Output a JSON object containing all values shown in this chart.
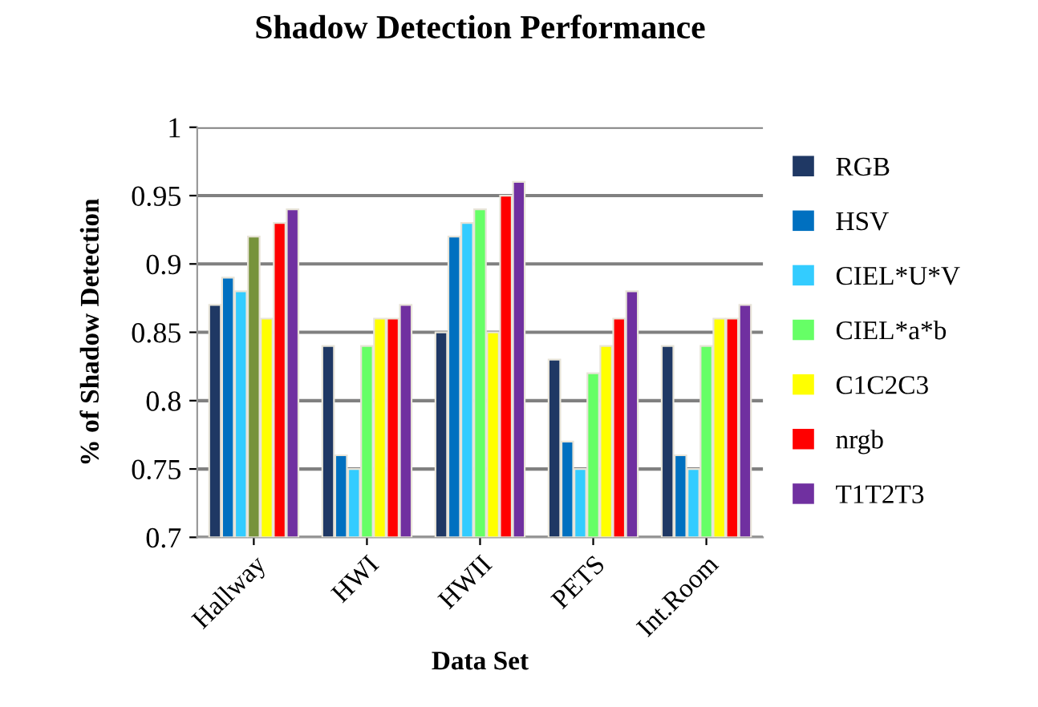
{
  "chart_data": {
    "type": "bar",
    "title": "Shadow Detection Performance",
    "xlabel": "Data Set",
    "ylabel": "% of Shadow Detection",
    "categories": [
      "Hallway",
      "HWI",
      "HWII",
      "PETS",
      "Int.Room"
    ],
    "series": [
      {
        "name": "RGB",
        "color": "#1f3864",
        "values": [
          0.87,
          0.84,
          0.85,
          0.83,
          0.84
        ]
      },
      {
        "name": "HSV",
        "color": "#0070c0",
        "values": [
          0.89,
          0.76,
          0.92,
          0.77,
          0.76
        ]
      },
      {
        "name": "CIEL*U*V",
        "color": "#33ccff",
        "values": [
          0.88,
          0.75,
          0.93,
          0.75,
          0.75
        ]
      },
      {
        "name": "CIEL*a*b",
        "color": "#66ff66",
        "colors": [
          "#77933c",
          "#66ff66",
          "#66ff66",
          "#66ff66",
          "#66ff66"
        ],
        "values": [
          0.92,
          0.84,
          0.94,
          0.82,
          0.84
        ]
      },
      {
        "name": "C1C2C3",
        "color": "#ffff00",
        "values": [
          0.86,
          0.86,
          0.85,
          0.84,
          0.86
        ]
      },
      {
        "name": "nrgb",
        "color": "#ff0000",
        "values": [
          0.93,
          0.86,
          0.95,
          0.86,
          0.86
        ]
      },
      {
        "name": "T1T2T3",
        "color": "#7030a0",
        "values": [
          0.94,
          0.87,
          0.96,
          0.88,
          0.87
        ]
      }
    ],
    "ylim": [
      0.7,
      1
    ],
    "yticks": [
      {
        "value": 0.7,
        "label": "0.7"
      },
      {
        "value": 0.75,
        "label": "0.75"
      },
      {
        "value": 0.8,
        "label": "0.8"
      },
      {
        "value": 0.85,
        "label": "0.85"
      },
      {
        "value": 0.9,
        "label": "0.9"
      },
      {
        "value": 0.95,
        "label": "0.95"
      },
      {
        "value": 1,
        "label": "1"
      }
    ],
    "grid": "y",
    "legend": "right"
  }
}
